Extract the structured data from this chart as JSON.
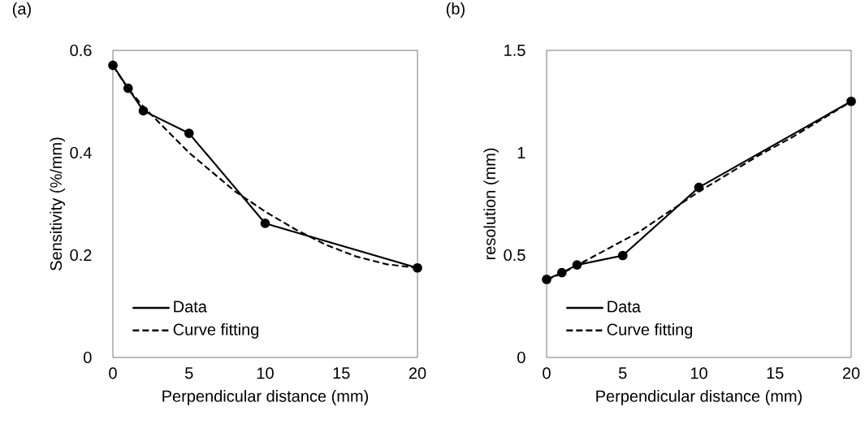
{
  "chart_data": [
    {
      "type": "line",
      "title": "(a)",
      "xlabel": "Perpendicular distance (mm)",
      "ylabel": "Sensitivity (%/mm)",
      "xlim": [
        0,
        20
      ],
      "ylim": [
        0,
        0.6
      ],
      "xticks": [
        0,
        5,
        10,
        15,
        20
      ],
      "yticks": [
        0,
        0.2,
        0.4,
        0.6
      ],
      "legend": "bottom left",
      "series": [
        {
          "name": "Data",
          "color": "#000000",
          "marker": "circle",
          "line_style": "solid",
          "x": [
            0,
            1,
            2,
            5,
            10,
            20
          ],
          "values": [
            0.571,
            0.526,
            0.482,
            0.438,
            0.262,
            0.175
          ]
        },
        {
          "name": "Curve fitting",
          "color": "#000000",
          "marker": "none",
          "line_style": "dashed",
          "x": [
            0,
            1,
            2,
            3,
            4,
            5,
            6,
            8,
            10,
            12,
            14,
            16,
            18,
            20
          ],
          "values": [
            0.57,
            0.525,
            0.49,
            0.46,
            0.43,
            0.4,
            0.375,
            0.325,
            0.285,
            0.25,
            0.22,
            0.197,
            0.182,
            0.175
          ]
        }
      ]
    },
    {
      "type": "line",
      "title": "(b)",
      "xlabel": "Perpendicular distance (mm)",
      "ylabel": "resolution (mm)",
      "xlim": [
        0,
        20
      ],
      "ylim": [
        0,
        1.5
      ],
      "xticks": [
        0,
        5,
        10,
        15,
        20
      ],
      "yticks": [
        0,
        0.5,
        1,
        1.5
      ],
      "legend": "bottom left",
      "series": [
        {
          "name": "Data",
          "color": "#000000",
          "marker": "circle",
          "line_style": "solid",
          "x": [
            0,
            1,
            2,
            5,
            10,
            20
          ],
          "values": [
            0.381,
            0.414,
            0.452,
            0.498,
            0.831,
            1.251
          ]
        },
        {
          "name": "Curve fitting",
          "color": "#000000",
          "marker": "none",
          "line_style": "dashed",
          "x": [
            0,
            1,
            2,
            3,
            4,
            5,
            6,
            8,
            10,
            12,
            14,
            16,
            18,
            20
          ],
          "values": [
            0.38,
            0.41,
            0.45,
            0.49,
            0.53,
            0.57,
            0.61,
            0.71,
            0.81,
            0.9,
            0.99,
            1.07,
            1.16,
            1.25
          ]
        }
      ]
    }
  ]
}
